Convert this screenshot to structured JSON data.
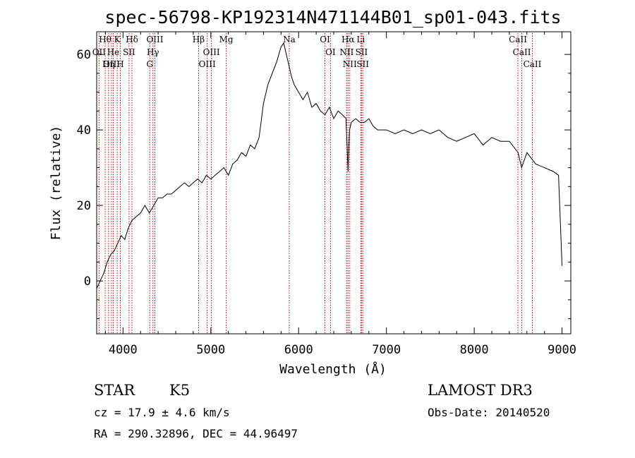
{
  "chart_data": {
    "type": "line",
    "title": "spec-56798-KP192314N471144B01_sp01-043.fits",
    "xlabel": "Wavelength (Å)",
    "ylabel": "Flux (relative)",
    "xlim": [
      3700,
      9100
    ],
    "ylim": [
      -14,
      66
    ],
    "xticks": [
      4000,
      5000,
      6000,
      7000,
      8000,
      9000
    ],
    "yticks": [
      0,
      20,
      40,
      60
    ],
    "series": [
      {
        "name": "flux",
        "x": [
          3700,
          3740,
          3780,
          3820,
          3860,
          3900,
          3940,
          3980,
          4020,
          4060,
          4100,
          4150,
          4200,
          4250,
          4300,
          4350,
          4400,
          4450,
          4500,
          4550,
          4600,
          4650,
          4700,
          4750,
          4800,
          4850,
          4900,
          4950,
          5000,
          5050,
          5100,
          5150,
          5200,
          5250,
          5300,
          5350,
          5400,
          5450,
          5500,
          5550,
          5600,
          5650,
          5700,
          5750,
          5800,
          5830,
          5860,
          5880,
          5900,
          5920,
          5950,
          6000,
          6050,
          6100,
          6150,
          6200,
          6250,
          6300,
          6350,
          6400,
          6450,
          6500,
          6540,
          6563,
          6580,
          6600,
          6650,
          6700,
          6750,
          6800,
          6850,
          6900,
          6950,
          7000,
          7100,
          7200,
          7300,
          7400,
          7500,
          7600,
          7700,
          7800,
          7900,
          8000,
          8100,
          8200,
          8300,
          8400,
          8500,
          8540,
          8600,
          8700,
          8800,
          8900,
          8960,
          9000
        ],
        "y": [
          -2,
          0,
          2,
          5,
          7,
          8,
          10,
          12,
          11,
          14,
          16,
          17,
          18,
          20,
          18,
          20,
          22,
          22,
          23,
          23,
          24,
          25,
          26,
          25,
          26,
          27,
          26,
          28,
          27,
          28,
          29,
          30,
          28,
          31,
          32,
          34,
          33,
          36,
          35,
          38,
          47,
          52,
          55,
          58,
          62,
          63,
          60,
          58,
          56,
          54,
          52,
          50,
          48,
          50,
          46,
          47,
          45,
          44,
          46,
          43,
          45,
          44,
          43,
          29,
          40,
          42,
          43,
          42,
          42,
          43,
          41,
          40,
          40,
          40,
          39,
          40,
          39,
          40,
          39,
          40,
          38,
          37,
          38,
          39,
          36,
          38,
          37,
          37,
          34,
          30,
          34,
          31,
          30,
          29,
          28,
          4
        ]
      }
    ],
    "line_markers": [
      {
        "label": "Hθ",
        "x": 3797
      },
      {
        "label": "OII",
        "x": 3727
      },
      {
        "label": "OIII",
        "x": 3869
      },
      {
        "label": "K",
        "x": 3934
      },
      {
        "label": "He",
        "x": 3889
      },
      {
        "label": "Hη",
        "x": 3835
      },
      {
        "label": "Hδ",
        "x": 4102
      },
      {
        "label": "SII",
        "x": 4069
      },
      {
        "label": "H",
        "x": 3969
      },
      {
        "label": "OIII",
        "x": 4363
      },
      {
        "label": "Hγ",
        "x": 4341
      },
      {
        "label": "G",
        "x": 4305
      },
      {
        "label": "Hβ",
        "x": 4861
      },
      {
        "label": "OIII",
        "x": 5007
      },
      {
        "label": "OIII",
        "x": 4959
      },
      {
        "label": "Mg",
        "x": 5175
      },
      {
        "label": "Na",
        "x": 5893
      },
      {
        "label": "OI",
        "x": 6300
      },
      {
        "label": "OI",
        "x": 6363
      },
      {
        "label": "Hα",
        "x": 6563
      },
      {
        "label": "NII",
        "x": 6548
      },
      {
        "label": "NII",
        "x": 6583
      },
      {
        "label": "SII",
        "x": 6717
      },
      {
        "label": "Li",
        "x": 6708
      },
      {
        "label": "SII",
        "x": 6731
      },
      {
        "label": "CaII",
        "x": 8498
      },
      {
        "label": "CaII",
        "x": 8542
      },
      {
        "label": "CaII",
        "x": 8662
      }
    ],
    "marker_color": "#cc0000"
  },
  "info": {
    "class_label": "STAR",
    "subclass": "K5",
    "survey": "LAMOST DR3",
    "cz": "cz = 17.9 ± 4.6 km/s",
    "obs_date": "Obs-Date: 20140520",
    "coords": "RA = 290.32896, DEC =  44.96497"
  }
}
